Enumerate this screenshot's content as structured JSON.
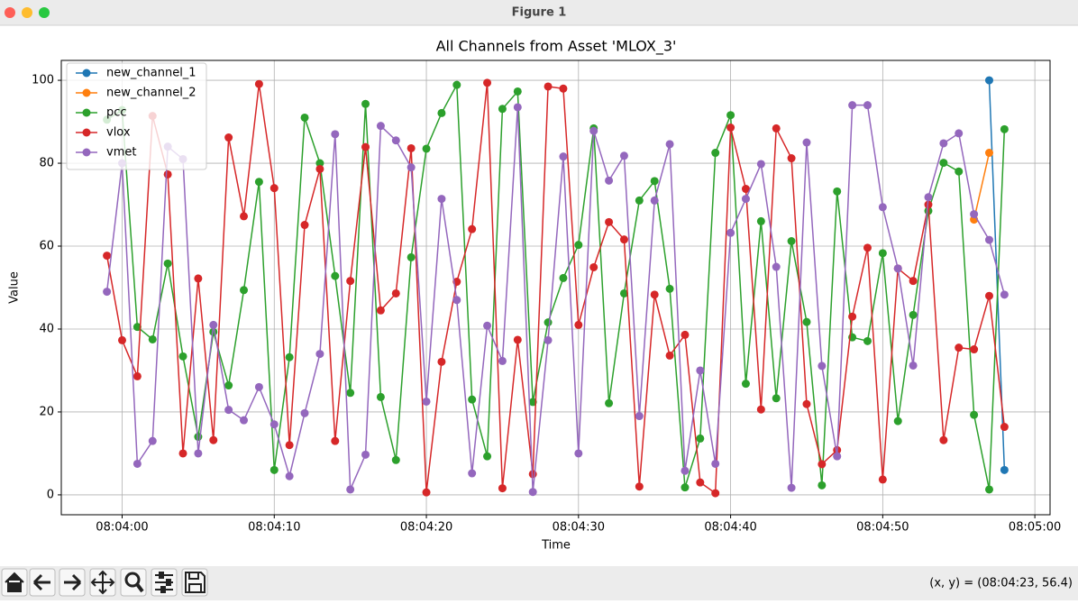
{
  "window": {
    "title": "Figure 1",
    "status": "(x, y) = (08:04:23, 56.4)"
  },
  "chart_data": {
    "type": "line",
    "title": "All Channels from Asset 'MLOX_3'",
    "x_label": "Time",
    "y_label": "Value",
    "x": [
      "08:03:59",
      "08:04:00",
      "08:04:01",
      "08:04:02",
      "08:04:03",
      "08:04:04",
      "08:04:05",
      "08:04:06",
      "08:04:07",
      "08:04:08",
      "08:04:09",
      "08:04:10",
      "08:04:11",
      "08:04:12",
      "08:04:13",
      "08:04:14",
      "08:04:15",
      "08:04:16",
      "08:04:17",
      "08:04:18",
      "08:04:19",
      "08:04:20",
      "08:04:21",
      "08:04:22",
      "08:04:23",
      "08:04:24",
      "08:04:25",
      "08:04:26",
      "08:04:27",
      "08:04:28",
      "08:04:29",
      "08:04:30",
      "08:04:31",
      "08:04:32",
      "08:04:33",
      "08:04:34",
      "08:04:35",
      "08:04:36",
      "08:04:37",
      "08:04:38",
      "08:04:39",
      "08:04:40",
      "08:04:41",
      "08:04:42",
      "08:04:43",
      "08:04:44",
      "08:04:45",
      "08:04:46",
      "08:04:47",
      "08:04:48",
      "08:04:49",
      "08:04:50",
      "08:04:51",
      "08:04:52",
      "08:04:53",
      "08:04:54",
      "08:04:55",
      "08:04:56",
      "08:04:57",
      "08:04:58"
    ],
    "series": [
      {
        "name": "new_channel_1",
        "color": "#1f77b4",
        "x": [
          "08:04:57",
          "08:04:58"
        ],
        "values": [
          100,
          6
        ]
      },
      {
        "name": "new_channel_2",
        "color": "#ff7f0e",
        "x": [
          "08:04:56",
          "08:04:57"
        ],
        "values": [
          66.4,
          82.5
        ]
      },
      {
        "name": "pcc",
        "color": "#2ca02c",
        "values": [
          90.5,
          92.8,
          40.5,
          37.5,
          55.8,
          33.4,
          14,
          39.3,
          26.4,
          49.4,
          75.5,
          6,
          33.2,
          91,
          80,
          52.8,
          24.6,
          94.3,
          23.6,
          8.4,
          57.3,
          83.5,
          92.1,
          98.9,
          23,
          9.3,
          93.1,
          97.3,
          22.4,
          41.6,
          52.3,
          60.3,
          88.4,
          22.1,
          48.6,
          71,
          75.7,
          49.7,
          1.8,
          13.6,
          82.5,
          91.6,
          26.8,
          66,
          23.3,
          61.2,
          41.7,
          2.3,
          73.2,
          38,
          37.1,
          58.3,
          17.8,
          43.4,
          68.5,
          80.1,
          78,
          19.3,
          1.3,
          88.2
        ]
      },
      {
        "name": "vlox",
        "color": "#d62728",
        "values": [
          57.7,
          37.3,
          28.6,
          91.4,
          77.3,
          10,
          52.2,
          13.2,
          86.2,
          67.2,
          99.1,
          74,
          12,
          65.1,
          78.6,
          13,
          51.6,
          83.9,
          44.5,
          48.6,
          83.6,
          0.6,
          32.1,
          51.4,
          64.1,
          99.4,
          1.6,
          37.4,
          5,
          98.5,
          98,
          41,
          54.9,
          65.8,
          61.6,
          2,
          48.3,
          33.6,
          38.6,
          3,
          0.4,
          88.6,
          73.8,
          20.6,
          88.4,
          81.2,
          21.9,
          7.4,
          10.8,
          43,
          59.6,
          3.7,
          54.6,
          51.6,
          70,
          13.2,
          35.5,
          35.1,
          48,
          16.4
        ]
      },
      {
        "name": "vmet",
        "color": "#9467bd",
        "values": [
          49,
          80,
          7.5,
          13,
          84,
          81,
          10,
          41,
          20.5,
          18,
          26,
          17,
          4.5,
          19.7,
          34,
          87,
          1.3,
          9.7,
          89,
          85.5,
          79,
          22.5,
          71.4,
          47,
          5.2,
          40.8,
          32.3,
          93.5,
          0.7,
          37.3,
          81.6,
          10,
          87.8,
          75.8,
          81.8,
          19,
          71,
          84.6,
          5.8,
          30,
          7.5,
          63.2,
          71.4,
          79.8,
          55,
          1.7,
          85,
          31.1,
          9.3,
          94,
          94,
          69.4,
          54.6,
          31.2,
          71.8,
          84.8,
          87.2,
          67.7,
          61.5,
          48.3
        ]
      }
    ],
    "xlim": [
      "08:03:56",
      "08:05:01"
    ],
    "xticks": [
      "08:04:00",
      "08:04:10",
      "08:04:20",
      "08:04:30",
      "08:04:40",
      "08:04:50",
      "08:05:00"
    ],
    "ylim": [
      -4.8,
      104.8
    ],
    "yticks": [
      0,
      20,
      40,
      60,
      80,
      100
    ],
    "grid": true,
    "legend": "upper left"
  }
}
